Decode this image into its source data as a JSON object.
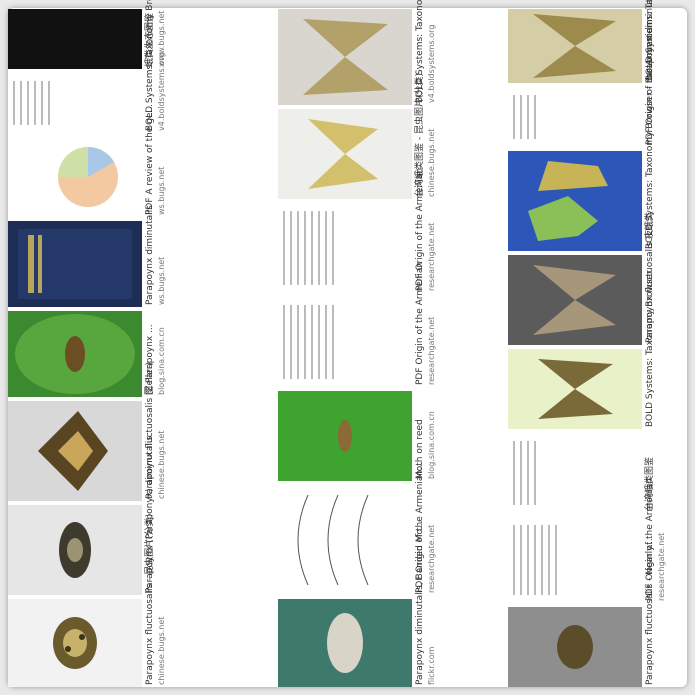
{
  "gallery": {
    "columns": [
      {
        "tiles": [
          {
            "caption": "Parapoynx fluctuosalis - 昆虫图片(分类)",
            "source": "chinese.bugs.net"
          },
          {
            "caption": "Parapoynx (Paraponyx) diminutalis",
            "source": ""
          },
          {
            "caption": "Parapoynx fluctuosalis (Zeller)",
            "source": "chinese.bugs.net"
          },
          {
            "caption": "图 Parapoynx ...",
            "source": "blog.sina.com.cn"
          },
          {
            "caption": "Parapoynx diminutalis",
            "source": "ws.bugs.net"
          },
          {
            "caption": "PDF A review of the ge...",
            "source": "ws.bugs.net"
          },
          {
            "caption": "BOLD Systems: Taxonomy Browser - Parapo...",
            "source": "v4.boldsystems.org"
          },
          {
            "caption": "蛾类生态图鉴",
            "source": "www.bugs.net"
          }
        ]
      },
      {
        "tiles": [
          {
            "caption": "Parapoynx diminutalis, Banded Mo...",
            "source": "flickr.com"
          },
          {
            "caption": "PDF Origin of the Armenian...",
            "source": "researchgate.net"
          },
          {
            "caption": "Moth on reed",
            "source": "blog.sina.com.cn"
          },
          {
            "caption": "PDF Origin of the Armenian",
            "source": "researchgate.net"
          },
          {
            "caption": "PDF Origin of the Armenian",
            "source": "researchgate.net"
          },
          {
            "caption": "台湾蛾类图鉴 - 昆虫图片(分类)",
            "source": "chinese.bugs.net"
          },
          {
            "caption": "BOLD Systems: Taxonomy Browser - Parap...",
            "source": "v4.boldsystems.org"
          }
        ]
      },
      {
        "tiles": [
          {
            "caption": "Parapoynx fluctuosalis - Nearly...",
            "source": ""
          },
          {
            "caption": "PDF Origin of the Armenian",
            "source": "researchgate.net"
          },
          {
            "caption": "台湾蛾类图鉴",
            "source": ""
          },
          {
            "caption": "BOLD Systems: Taxonomy Browser",
            "source": ""
          },
          {
            "caption": "Parapoynx fluctuosalis 夜蛾类",
            "source": ""
          },
          {
            "caption": "BOLD Systems: Taxonomy Browser - Parapoynx diminut...",
            "source": ""
          },
          {
            "caption": "PDF Origin of the Armenian",
            "source": ""
          },
          {
            "caption": "BOLD Systems: Taxonomy Browser - Para...",
            "source": ""
          }
        ]
      }
    ]
  },
  "colors": {
    "page_bg": "#e9e9e9",
    "card_bg": "#ffffff",
    "caption": "#333333",
    "source": "#777777"
  }
}
